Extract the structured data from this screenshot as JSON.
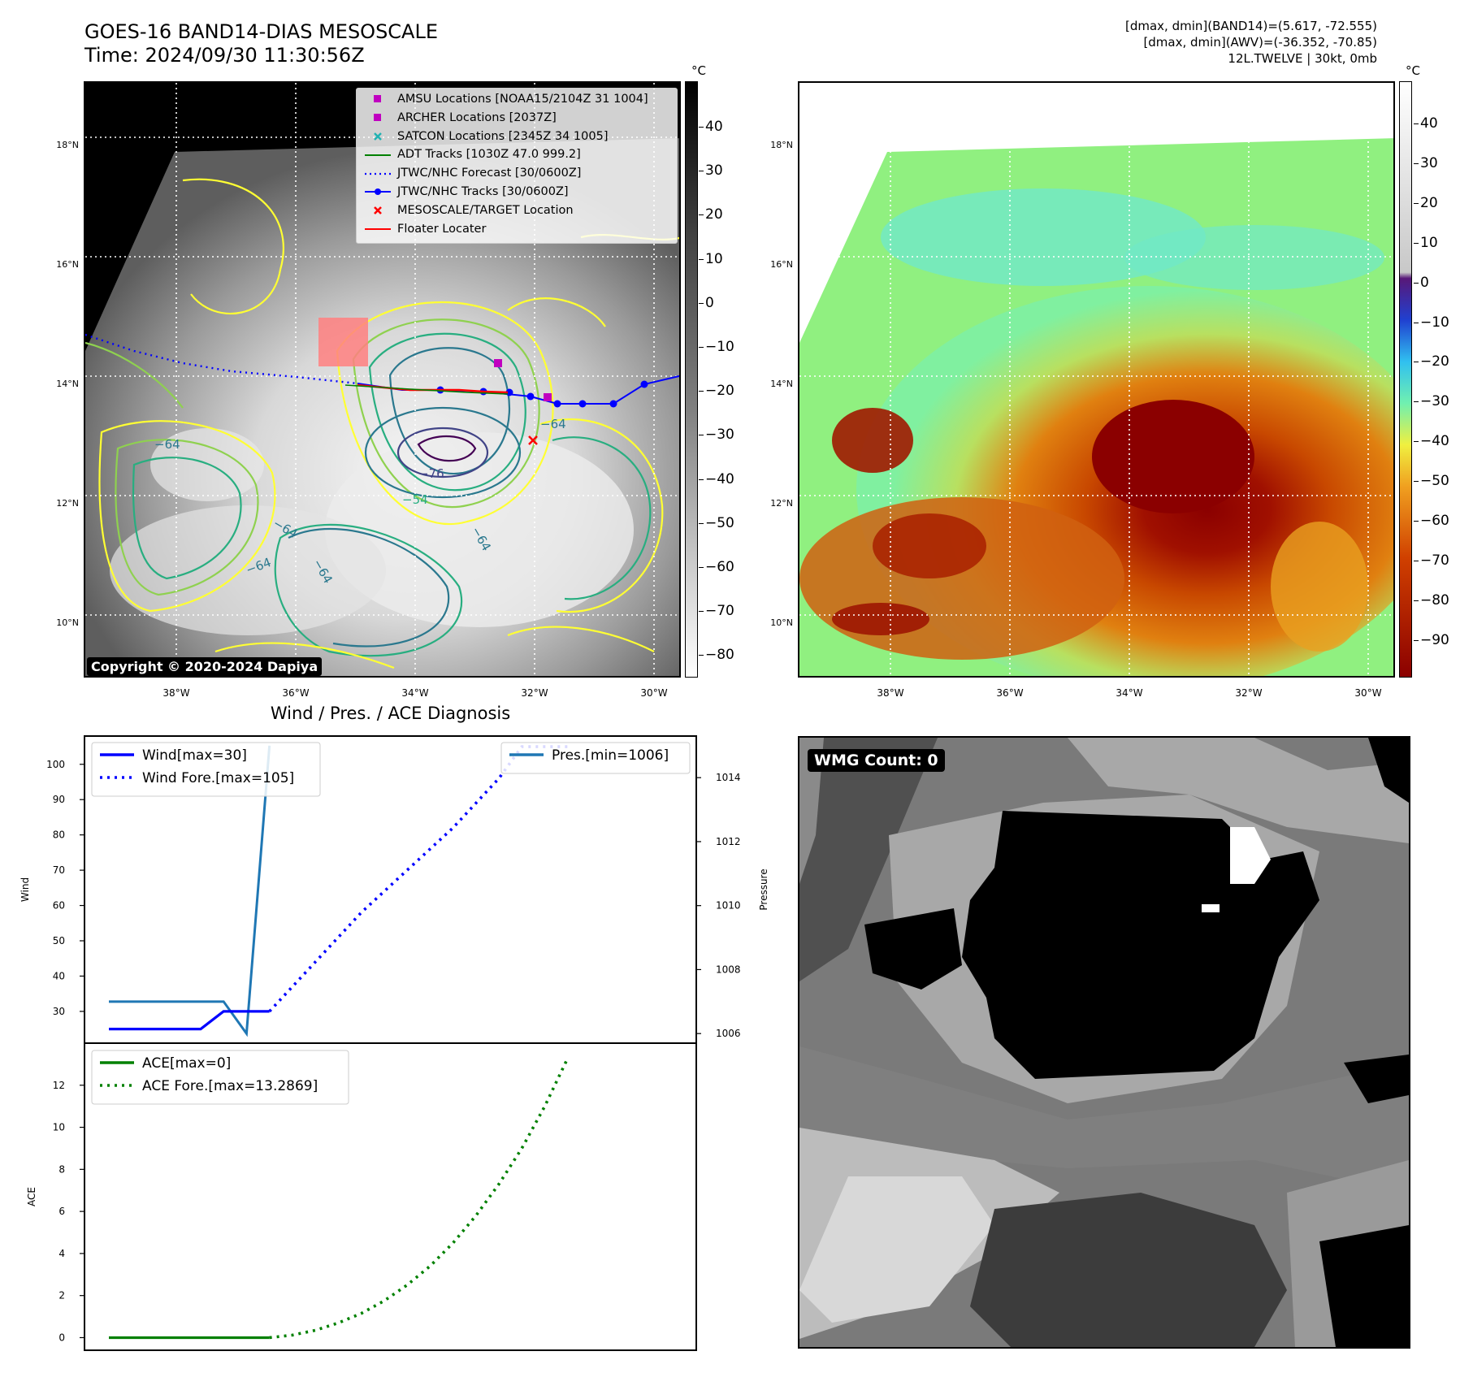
{
  "header": {
    "title_line1": "GOES-16 BAND14-DIAS MESOSCALE",
    "title_line2": "Time: 2024/09/30 11:30:56Z",
    "meta_line1": "[dmax, dmin](BAND14)=(5.617, -72.555)",
    "meta_line2": "[dmax, dmin](AWV)=(-36.352, -70.85)",
    "meta_line3": "12L.TWELVE | 30kt, 0mb"
  },
  "colors": {
    "wind": "#0000ff",
    "pressure": "#1f77b4",
    "ace": "#008000",
    "amsu": "#c000c0",
    "archer": "#c000c0",
    "satcon": "#20b2b2",
    "adt": "#008000",
    "jtwc": "#0000ff",
    "target": "#ff0000",
    "floater": "#ff0000"
  },
  "map_left": {
    "colorbar_unit": "°C",
    "colorbar_ticks": [
      "40",
      "30",
      "20",
      "10",
      "0",
      "−10",
      "−20",
      "−30",
      "−40",
      "−50",
      "−60",
      "−70",
      "−80"
    ],
    "lat_ticks": [
      "18°N",
      "16°N",
      "14°N",
      "12°N",
      "10°N"
    ],
    "lon_ticks": [
      "38°W",
      "36°W",
      "34°W",
      "32°W",
      "30°W"
    ],
    "contour_labels": [
      "−64",
      "−76",
      "−64",
      "−64",
      "−64",
      "−64",
      "−54",
      "−64"
    ],
    "copyright": "Copyright © 2020-2024 Dapiya",
    "legend": [
      {
        "icon": "square-marker-icon",
        "label": "AMSU Locations [NOAA15/2104Z 31 1004]"
      },
      {
        "icon": "square-marker-icon",
        "label": "ARCHER Locations [2037Z]"
      },
      {
        "icon": "x-marker-icon",
        "label": "SATCON Locations [2345Z 34 1005]"
      },
      {
        "icon": "line-icon",
        "label": "ADT Tracks [1030Z 47.0 999.2]"
      },
      {
        "icon": "dotted-line-icon",
        "label": "JTWC/NHC Forecast [30/0600Z]"
      },
      {
        "icon": "line-dot-icon",
        "label": "JTWC/NHC Tracks [30/0600Z]"
      },
      {
        "icon": "x-marker-icon",
        "label": "MESOSCALE/TARGET Location"
      },
      {
        "icon": "line-icon",
        "label": "Floater Locater"
      }
    ]
  },
  "map_right": {
    "colorbar_unit": "°C",
    "colorbar_ticks": [
      "40",
      "30",
      "20",
      "10",
      "0",
      "−10",
      "−20",
      "−30",
      "−40",
      "−50",
      "−60",
      "−70",
      "−80",
      "−90"
    ],
    "lat_ticks": [
      "18°N",
      "16°N",
      "14°N",
      "12°N",
      "10°N"
    ],
    "lon_ticks": [
      "38°W",
      "36°W",
      "34°W",
      "32°W",
      "30°W"
    ]
  },
  "wmg_panel": {
    "label": "WMG Count: 0"
  },
  "chart_data": [
    {
      "type": "line",
      "title": "Wind / Pres. / ACE Diagnosis",
      "ylabel": "Wind",
      "ylabel_right": "Pressure",
      "ylim": [
        21,
        108
      ],
      "ylim_right": [
        1005.7,
        1015.3
      ],
      "yticks": [
        30,
        40,
        50,
        60,
        70,
        80,
        90,
        100
      ],
      "yticks_right": [
        1006,
        1008,
        1010,
        1012,
        1014
      ],
      "series": [
        {
          "name": "Wind[max=30]",
          "style": "solid",
          "x": [
            0,
            1,
            2,
            3,
            4,
            5,
            6,
            7
          ],
          "values": [
            25,
            25,
            25,
            25,
            25,
            30,
            30,
            30
          ]
        },
        {
          "name": "Wind Fore.[max=105]",
          "style": "dotted",
          "x": [
            7,
            8,
            9,
            10,
            11,
            12,
            13,
            14,
            15,
            16,
            17,
            18,
            19,
            20
          ],
          "values": [
            30,
            37,
            44,
            51,
            58,
            64,
            70,
            76,
            82,
            89,
            96,
            105,
            105,
            105
          ]
        },
        {
          "name": "Pres.[min=1006]",
          "style": "solid",
          "axis": "right",
          "x": [
            0,
            1,
            2,
            3,
            4,
            5,
            6,
            7
          ],
          "values": [
            1007,
            1007,
            1007,
            1007,
            1007,
            1007,
            1006,
            1015
          ]
        }
      ]
    },
    {
      "type": "line",
      "ylabel": "ACE",
      "ylim": [
        -0.6,
        14
      ],
      "yticks": [
        0,
        2,
        4,
        6,
        8,
        10,
        12
      ],
      "series": [
        {
          "name": "ACE[max=0]",
          "style": "solid",
          "x": [
            0,
            7
          ],
          "values": [
            0,
            0
          ]
        },
        {
          "name": "ACE Fore.[max=13.2869]",
          "style": "dotted",
          "x": [
            7,
            8,
            9,
            10,
            11,
            12,
            13,
            14,
            15,
            16,
            17,
            18,
            19,
            20
          ],
          "values": [
            0,
            0.12,
            0.35,
            0.7,
            1.15,
            1.75,
            2.5,
            3.4,
            4.5,
            5.8,
            7.3,
            9.0,
            11.0,
            13.2869
          ]
        }
      ]
    }
  ]
}
